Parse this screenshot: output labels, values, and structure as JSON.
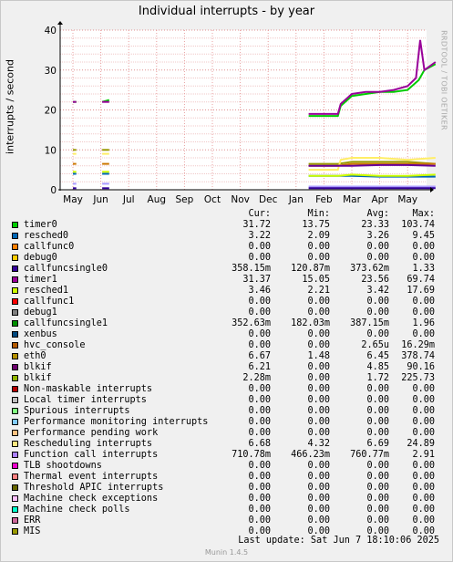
{
  "chart_data": {
    "type": "line",
    "title": "Individual interrupts - by year",
    "ylabel": "interrupts / second",
    "xlabel": "",
    "ylim": [
      0,
      40
    ],
    "yticks": [
      0,
      10,
      20,
      30,
      40
    ],
    "x_ticks": [
      "May",
      "Jun",
      "Jul",
      "Aug",
      "Sep",
      "Oct",
      "Nov",
      "Dec",
      "Jan",
      "Feb",
      "Mar",
      "Apr",
      "May"
    ],
    "grid": true,
    "series": [
      {
        "name": "timer0",
        "color": "#00cc00",
        "segments": [
          {
            "x": [
              0.0,
              0.12
            ],
            "y": [
              22,
              22
            ]
          },
          {
            "x": [
              1.05,
              1.3
            ],
            "y": [
              22,
              22.5
            ]
          },
          {
            "x": [
              8.45,
              9.0,
              9.5,
              9.6,
              10.0,
              10.5,
              11.0,
              11.5,
              12.0,
              12.4,
              12.6,
              13.0
            ],
            "y": [
              18.5,
              18.5,
              18.5,
              21,
              23.5,
              24,
              24.5,
              24.5,
              25,
              27.5,
              30,
              31.5
            ]
          }
        ]
      },
      {
        "name": "timer1",
        "color": "#990099",
        "segments": [
          {
            "x": [
              0.0,
              0.12
            ],
            "y": [
              22,
              22
            ]
          },
          {
            "x": [
              1.05,
              1.3
            ],
            "y": [
              22,
              22
            ]
          },
          {
            "x": [
              8.45,
              9.0,
              9.5,
              9.6,
              10.0,
              10.5,
              11.0,
              11.5,
              12.0,
              12.3,
              12.45,
              12.6,
              13.0
            ],
            "y": [
              19,
              19,
              19,
              21.5,
              24,
              24.5,
              24.5,
              25,
              26,
              28,
              37.5,
              30,
              32
            ]
          }
        ]
      },
      {
        "name": "blkif",
        "color": "#999900",
        "segments": [
          {
            "x": [
              0.0,
              0.12
            ],
            "y": [
              10,
              10
            ]
          },
          {
            "x": [
              1.05,
              1.3
            ],
            "y": [
              10,
              10
            ]
          },
          {
            "x": [
              8.45,
              9.5,
              10.0,
              10.5,
              11.0,
              11.5,
              12.0,
              13.0
            ],
            "y": [
              6.5,
              6.5,
              7,
              7,
              7,
              7,
              7,
              6.5
            ]
          }
        ]
      },
      {
        "name": "Rescheduling interrupts",
        "color": "#ffee66",
        "segments": [
          {
            "x": [
              0.0,
              0.12
            ],
            "y": [
              9,
              9
            ]
          },
          {
            "x": [
              1.05,
              1.3
            ],
            "y": [
              9,
              9
            ]
          },
          {
            "x": [
              8.45,
              9.5,
              9.6,
              10.0,
              11.0,
              12.0,
              13.0
            ],
            "y": [
              5,
              5,
              7.5,
              8,
              8,
              7.5,
              8
            ]
          }
        ]
      },
      {
        "name": "eth0",
        "color": "#cc7700",
        "segments": [
          {
            "x": [
              0.0,
              0.12
            ],
            "y": [
              6.5,
              6.5
            ]
          },
          {
            "x": [
              1.05,
              1.3
            ],
            "y": [
              6.5,
              6.5
            ]
          },
          {
            "x": [
              8.45,
              9.5,
              10.0,
              11.0,
              12.0,
              13.0
            ],
            "y": [
              6,
              6,
              6.5,
              6.5,
              6.5,
              6.5
            ]
          }
        ]
      },
      {
        "name": "blkif",
        "color": "#660099",
        "segments": [
          {
            "x": [
              8.45,
              9.5,
              10.0,
              11.0,
              12.0,
              13.0
            ],
            "y": [
              6,
              6,
              6,
              6.2,
              6.2,
              6
            ]
          }
        ]
      },
      {
        "name": "resched0",
        "color": "#0066b3",
        "segments": [
          {
            "x": [
              0.0,
              0.12
            ],
            "y": [
              4,
              4
            ]
          },
          {
            "x": [
              1.05,
              1.3
            ],
            "y": [
              4,
              4
            ]
          },
          {
            "x": [
              8.45,
              9.5,
              10.0,
              11.0,
              12.0,
              13.0
            ],
            "y": [
              3.5,
              3.5,
              3.5,
              3.3,
              3.3,
              3.3
            ]
          }
        ]
      },
      {
        "name": "resched1",
        "color": "#ccff00",
        "segments": [
          {
            "x": [
              0.0,
              0.12
            ],
            "y": [
              4.5,
              4.5
            ]
          },
          {
            "x": [
              1.05,
              1.3
            ],
            "y": [
              4.5,
              4.5
            ]
          },
          {
            "x": [
              8.45,
              9.5,
              10.0,
              11.0,
              12.0,
              13.0
            ],
            "y": [
              3.5,
              3.5,
              3.8,
              3.5,
              3.5,
              3.8
            ]
          }
        ]
      },
      {
        "name": "Function call interrupts",
        "color": "#aa99ff",
        "segments": [
          {
            "x": [
              0.0,
              0.12
            ],
            "y": [
              1.5,
              1.5
            ]
          },
          {
            "x": [
              1.05,
              1.3
            ],
            "y": [
              1.5,
              1.5
            ]
          },
          {
            "x": [
              8.45,
              13.0
            ],
            "y": [
              0.8,
              0.8
            ]
          }
        ]
      },
      {
        "name": "callfuncsingle0",
        "color": "#330099",
        "segments": [
          {
            "x": [
              0.0,
              0.12
            ],
            "y": [
              0.4,
              0.4
            ]
          },
          {
            "x": [
              1.05,
              1.3
            ],
            "y": [
              0.4,
              0.4
            ]
          },
          {
            "x": [
              8.45,
              13.0
            ],
            "y": [
              0.4,
              0.4
            ]
          }
        ]
      }
    ]
  },
  "legend": {
    "headers": {
      "cur": "Cur:",
      "min": "Min:",
      "avg": "Avg:",
      "max": "Max:"
    },
    "rows": [
      {
        "name": "timer0",
        "color": "#00cc00",
        "cur": "31.72",
        "min": "13.75",
        "avg": "23.33",
        "max": "103.74"
      },
      {
        "name": "resched0",
        "color": "#0066b3",
        "cur": "3.22",
        "min": "2.09",
        "avg": "3.26",
        "max": "9.45"
      },
      {
        "name": "callfunc0",
        "color": "#ff8000",
        "cur": "0.00",
        "min": "0.00",
        "avg": "0.00",
        "max": "0.00"
      },
      {
        "name": "debug0",
        "color": "#ffcc00",
        "cur": "0.00",
        "min": "0.00",
        "avg": "0.00",
        "max": "0.00"
      },
      {
        "name": "callfuncsingle0",
        "color": "#330099",
        "cur": "358.15m",
        "min": "120.87m",
        "avg": "373.62m",
        "max": "1.33"
      },
      {
        "name": "timer1",
        "color": "#990099",
        "cur": "31.37",
        "min": "15.05",
        "avg": "23.56",
        "max": "69.74"
      },
      {
        "name": "resched1",
        "color": "#ccff00",
        "cur": "3.46",
        "min": "2.21",
        "avg": "3.42",
        "max": "17.69"
      },
      {
        "name": "callfunc1",
        "color": "#ff0000",
        "cur": "0.00",
        "min": "0.00",
        "avg": "0.00",
        "max": "0.00"
      },
      {
        "name": "debug1",
        "color": "#808080",
        "cur": "0.00",
        "min": "0.00",
        "avg": "0.00",
        "max": "0.00"
      },
      {
        "name": "callfuncsingle1",
        "color": "#008f00",
        "cur": "352.63m",
        "min": "182.03m",
        "avg": "387.15m",
        "max": "1.96"
      },
      {
        "name": "xenbus",
        "color": "#00487d",
        "cur": "0.00",
        "min": "0.00",
        "avg": "0.00",
        "max": "0.00"
      },
      {
        "name": "hvc_console",
        "color": "#b35a00",
        "cur": "0.00",
        "min": "0.00",
        "avg": "2.65u",
        "max": "16.29m"
      },
      {
        "name": "eth0",
        "color": "#b38f00",
        "cur": "6.67",
        "min": "1.48",
        "avg": "6.45",
        "max": "378.74"
      },
      {
        "name": "blkif",
        "color": "#6b006b",
        "cur": "6.21",
        "min": "0.00",
        "avg": "4.85",
        "max": "90.16"
      },
      {
        "name": "blkif",
        "color": "#8fb300",
        "cur": "2.28m",
        "min": "0.00",
        "avg": "1.72",
        "max": "225.73"
      },
      {
        "name": "Non-maskable interrupts",
        "color": "#b30000",
        "cur": "0.00",
        "min": "0.00",
        "avg": "0.00",
        "max": "0.00"
      },
      {
        "name": "Local timer interrupts",
        "color": "#bebebe",
        "cur": "0.00",
        "min": "0.00",
        "avg": "0.00",
        "max": "0.00"
      },
      {
        "name": "Spurious interrupts",
        "color": "#80ff80",
        "cur": "0.00",
        "min": "0.00",
        "avg": "0.00",
        "max": "0.00"
      },
      {
        "name": "Performance monitoring interrupts",
        "color": "#80c9ff",
        "cur": "0.00",
        "min": "0.00",
        "avg": "0.00",
        "max": "0.00"
      },
      {
        "name": "Performance pending work",
        "color": "#ffc080",
        "cur": "0.00",
        "min": "0.00",
        "avg": "0.00",
        "max": "0.00"
      },
      {
        "name": "Rescheduling interrupts",
        "color": "#ffe680",
        "cur": "6.68",
        "min": "4.32",
        "avg": "6.69",
        "max": "24.89"
      },
      {
        "name": "Function call interrupts",
        "color": "#aa80ff",
        "cur": "710.78m",
        "min": "466.23m",
        "avg": "760.77m",
        "max": "2.91"
      },
      {
        "name": "TLB shootdowns",
        "color": "#ee00cc",
        "cur": "0.00",
        "min": "0.00",
        "avg": "0.00",
        "max": "0.00"
      },
      {
        "name": "Thermal event interrupts",
        "color": "#ff8080",
        "cur": "0.00",
        "min": "0.00",
        "avg": "0.00",
        "max": "0.00"
      },
      {
        "name": "Threshold APIC interrupts",
        "color": "#666600",
        "cur": "0.00",
        "min": "0.00",
        "avg": "0.00",
        "max": "0.00"
      },
      {
        "name": "Machine check exceptions",
        "color": "#ffbfff",
        "cur": "0.00",
        "min": "0.00",
        "avg": "0.00",
        "max": "0.00"
      },
      {
        "name": "Machine check polls",
        "color": "#00ffcc",
        "cur": "0.00",
        "min": "0.00",
        "avg": "0.00",
        "max": "0.00"
      },
      {
        "name": "ERR",
        "color": "#cc6699",
        "cur": "0.00",
        "min": "0.00",
        "avg": "0.00",
        "max": "0.00"
      },
      {
        "name": "MIS",
        "color": "#999900",
        "cur": "0.00",
        "min": "0.00",
        "avg": "0.00",
        "max": "0.00"
      }
    ]
  },
  "footer": {
    "last_update": "Last update:  Sat Jun  7 18:10:06 2025",
    "munin": "Munin 1.4.5"
  },
  "watermark": "RRDTOOL / TOBI OETIKER"
}
